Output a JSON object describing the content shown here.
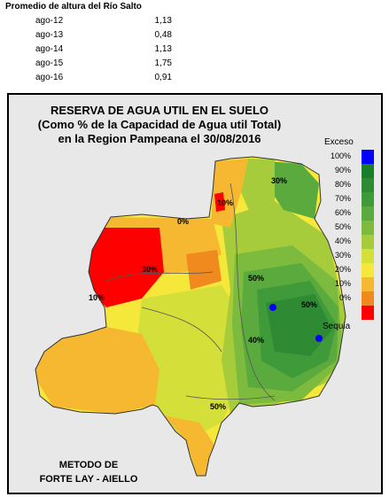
{
  "river": {
    "title": "Promedio de altura del Río Salto",
    "rows": [
      {
        "date": "ago-12",
        "value": "1,13"
      },
      {
        "date": "ago-13",
        "value": "0,48"
      },
      {
        "date": "ago-14",
        "value": "1,13"
      },
      {
        "date": "ago-15",
        "value": "1,75"
      },
      {
        "date": "ago-16",
        "value": "0,91"
      }
    ]
  },
  "map": {
    "title_line1": "RESERVA DE AGUA UTIL EN EL SUELO",
    "title_line2": "(Como % de la Capacidad de  Agua util Total)",
    "title_line3": "en la Region Pampeana el 30/08/2016",
    "method_line1": "METODO DE",
    "method_line2": "FORTE LAY - AIELLO",
    "contour_labels": [
      "0%",
      "30%",
      "10%",
      "50%",
      "30%",
      "50%",
      "10%",
      "40%",
      "50%"
    ],
    "legend": {
      "top_label": "Exceso",
      "bottom_label": "Sequia",
      "items": [
        {
          "label": "100%",
          "color": "#0000ff"
        },
        {
          "label": "90%",
          "color": "#1a7d2a"
        },
        {
          "label": "80%",
          "color": "#2e8b34"
        },
        {
          "label": "70%",
          "color": "#3f9a3a"
        },
        {
          "label": "60%",
          "color": "#5aaa3e"
        },
        {
          "label": "50%",
          "color": "#7dbb3f"
        },
        {
          "label": "40%",
          "color": "#a6cc3c"
        },
        {
          "label": "30%",
          "color": "#d4df3a"
        },
        {
          "label": "20%",
          "color": "#f5e83a"
        },
        {
          "label": "10%",
          "color": "#f5b830"
        },
        {
          "label": "0%",
          "color": "#f08a1e"
        },
        {
          "label": "",
          "color": "#ff0000"
        }
      ]
    }
  }
}
